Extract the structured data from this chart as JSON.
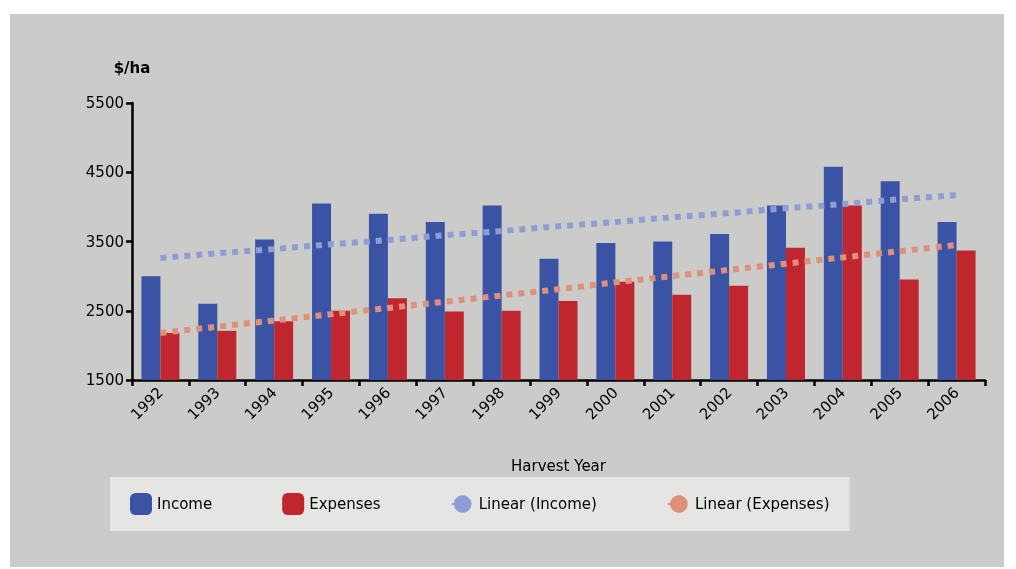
{
  "chart_data": {
    "type": "bar",
    "ylabel": "$/ha",
    "xlabel": "Harvest Year",
    "categories": [
      "1992",
      "1993",
      "1994",
      "1995",
      "1996",
      "1997",
      "1998",
      "1999",
      "2000",
      "2001",
      "2002",
      "2003",
      "2004",
      "2005",
      "2006"
    ],
    "series": [
      {
        "name": "Income",
        "color": "#3a53a4",
        "values": [
          3000,
          2600,
          3530,
          4050,
          3900,
          3780,
          4020,
          3250,
          3480,
          3500,
          3610,
          4020,
          4580,
          4370,
          3780
        ]
      },
      {
        "name": "Expenses",
        "color": "#c0262d",
        "values": [
          2180,
          2210,
          2350,
          2500,
          2680,
          2490,
          2500,
          2640,
          2920,
          2730,
          2860,
          3410,
          4020,
          2950,
          3370
        ]
      },
      {
        "name": "Linear (Income)",
        "type": "line",
        "line_style": "dashed",
        "marker": "none",
        "color": "#8e9dd6",
        "values": [
          3260,
          3330,
          3390,
          3460,
          3520,
          3590,
          3650,
          3720,
          3780,
          3850,
          3910,
          3980,
          4040,
          4110,
          4170
        ]
      },
      {
        "name": "Linear (Expenses)",
        "type": "line",
        "line_style": "dashed",
        "marker": "none",
        "color": "#e0907a",
        "values": [
          2180,
          2270,
          2360,
          2450,
          2540,
          2630,
          2720,
          2810,
          2910,
          3000,
          3090,
          3180,
          3270,
          3360,
          3450
        ]
      }
    ],
    "ylim": [
      1500,
      5500
    ],
    "yticks": [
      1500,
      2500,
      3500,
      4500,
      5500
    ],
    "grid": false,
    "legend": "bottom"
  }
}
